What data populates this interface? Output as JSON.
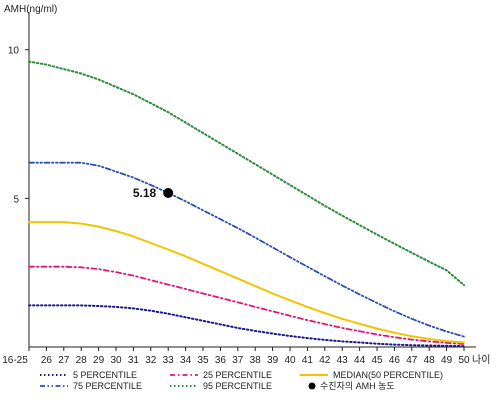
{
  "chart_data": {
    "type": "line",
    "ylabel": "AMH(ng/ml)",
    "xlabel": "나이",
    "ylim": [
      0,
      11
    ],
    "yticks": [
      5,
      10
    ],
    "categories": [
      "16-25",
      "26",
      "27",
      "28",
      "29",
      "30",
      "31",
      "32",
      "33",
      "34",
      "35",
      "36",
      "37",
      "38",
      "39",
      "40",
      "41",
      "42",
      "43",
      "44",
      "45",
      "46",
      "47",
      "48",
      "49",
      "50"
    ],
    "series": [
      {
        "name": "5 PERCENTILE",
        "color": "#1a1a8c",
        "dash": "dot",
        "values": [
          1.4,
          1.4,
          1.4,
          1.4,
          1.38,
          1.35,
          1.3,
          1.22,
          1.12,
          1.0,
          0.88,
          0.76,
          0.64,
          0.54,
          0.45,
          0.37,
          0.3,
          0.24,
          0.19,
          0.15,
          0.11,
          0.08,
          0.06,
          0.05,
          0.04,
          0.03
        ]
      },
      {
        "name": "25 PERCENTILE",
        "color": "#e0157a",
        "dash": "dashdot",
        "values": [
          2.7,
          2.7,
          2.7,
          2.68,
          2.62,
          2.52,
          2.4,
          2.25,
          2.1,
          1.95,
          1.8,
          1.65,
          1.5,
          1.35,
          1.2,
          1.05,
          0.9,
          0.77,
          0.64,
          0.53,
          0.42,
          0.33,
          0.25,
          0.19,
          0.14,
          0.1
        ]
      },
      {
        "name": "MEDIAN(50 PERCENTILE)",
        "color": "#f2c400",
        "dash": "solid",
        "values": [
          4.2,
          4.2,
          4.2,
          4.15,
          4.05,
          3.9,
          3.72,
          3.5,
          3.28,
          3.05,
          2.8,
          2.55,
          2.3,
          2.05,
          1.8,
          1.57,
          1.35,
          1.14,
          0.95,
          0.78,
          0.62,
          0.48,
          0.36,
          0.27,
          0.2,
          0.15
        ]
      },
      {
        "name": "75 PERCENTILE",
        "color": "#2a4fb0",
        "dash": "dashdotdot",
        "values": [
          6.2,
          6.2,
          6.2,
          6.2,
          6.1,
          5.9,
          5.7,
          5.45,
          5.18,
          4.9,
          4.6,
          4.3,
          4.0,
          3.68,
          3.35,
          3.02,
          2.7,
          2.38,
          2.07,
          1.77,
          1.48,
          1.2,
          0.95,
          0.72,
          0.52,
          0.35
        ]
      },
      {
        "name": "95 PERCENTILE",
        "color": "#2e8b3e",
        "dash": "dot",
        "values": [
          9.6,
          9.5,
          9.35,
          9.2,
          9.0,
          8.75,
          8.5,
          8.2,
          7.9,
          7.55,
          7.2,
          6.85,
          6.5,
          6.15,
          5.8,
          5.45,
          5.1,
          4.75,
          4.42,
          4.1,
          3.78,
          3.47,
          3.17,
          2.87,
          2.58,
          2.08
        ]
      }
    ],
    "highlight": {
      "name": "수진자의 AMH 농도",
      "x": "33",
      "y": 5.18,
      "label": "5.18",
      "color": "#000000"
    },
    "legend": {
      "placement": "bottom",
      "items": [
        "5 PERCENTILE",
        "25 PERCENTILE",
        "MEDIAN(50 PERCENTILE)",
        "75 PERCENTILE",
        "95 PERCENTILE",
        "수진자의 AMH 농도"
      ]
    },
    "grid": false
  }
}
